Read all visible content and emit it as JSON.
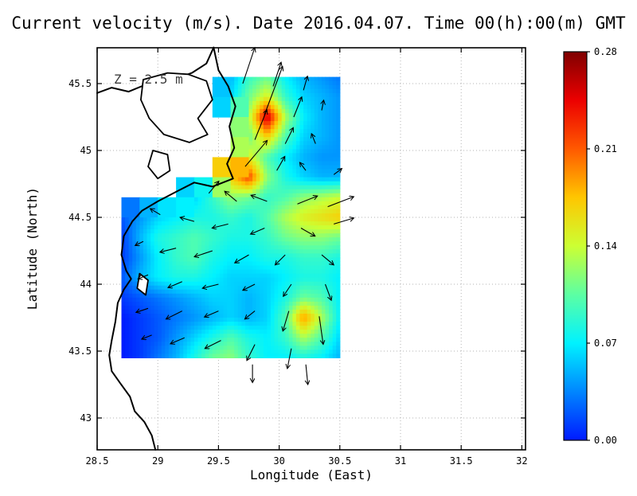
{
  "title": "Current velocity (m/s). Date 2016.04.07. Time 00(h):00(m) GMT",
  "annotation": "Z = 2.5 m",
  "axes": {
    "xlabel": "Longitude (East)",
    "ylabel": "Latitude (North)",
    "xlim": [
      28.5,
      32.03
    ],
    "ylim": [
      42.762,
      45.768
    ],
    "x_ticks": [
      {
        "v": 28.5,
        "label": "28.5"
      },
      {
        "v": 29,
        "label": "29"
      },
      {
        "v": 29.5,
        "label": "29.5"
      },
      {
        "v": 30,
        "label": "30"
      },
      {
        "v": 30.5,
        "label": "30.5"
      },
      {
        "v": 31,
        "label": "31"
      },
      {
        "v": 31.5,
        "label": "31.5"
      },
      {
        "v": 32,
        "label": "32"
      }
    ],
    "y_ticks": [
      {
        "v": 43,
        "label": "43"
      },
      {
        "v": 43.5,
        "label": "43.5"
      },
      {
        "v": 44,
        "label": "44"
      },
      {
        "v": 44.5,
        "label": "44.5"
      },
      {
        "v": 45,
        "label": "45"
      },
      {
        "v": 45.5,
        "label": "45.5"
      }
    ]
  },
  "colorbar": {
    "min": 0,
    "max": 0.28,
    "ticks": [
      {
        "v": 0,
        "label": "0.00"
      },
      {
        "v": 0.07,
        "label": "0.07"
      },
      {
        "v": 0.14,
        "label": "0.14"
      },
      {
        "v": 0.21,
        "label": "0.21"
      },
      {
        "v": 0.28,
        "label": "0.28"
      }
    ],
    "stops": [
      {
        "v": 0.0,
        "color": "#001aff"
      },
      {
        "v": 0.035,
        "color": "#0086ff"
      },
      {
        "v": 0.07,
        "color": "#00f2ff"
      },
      {
        "v": 0.105,
        "color": "#5cffa3"
      },
      {
        "v": 0.14,
        "color": "#ccff33"
      },
      {
        "v": 0.175,
        "color": "#ffc600"
      },
      {
        "v": 0.21,
        "color": "#ff5900"
      },
      {
        "v": 0.245,
        "color": "#ec0000"
      },
      {
        "v": 0.28,
        "color": "#7f0000"
      }
    ]
  },
  "chart_data": {
    "type": "heatmap",
    "title": "Current velocity (m/s). Date 2016.04.07. Time 00(h):00(m) GMT",
    "units": "m/s",
    "xlabel": "Longitude (East)",
    "ylabel": "Latitude (North)",
    "value_range": [
      0,
      0.28
    ],
    "lon": [
      28.7,
      28.85,
      29.0,
      29.15,
      29.3,
      29.45,
      29.6,
      29.75,
      29.9,
      30.05,
      30.2,
      30.35,
      30.5
    ],
    "lat": [
      45.55,
      45.4,
      45.25,
      45.1,
      44.95,
      44.8,
      44.65,
      44.5,
      44.35,
      44.2,
      44.05,
      43.9,
      43.75,
      43.6,
      43.45
    ],
    "speed": [
      [
        null,
        null,
        null,
        null,
        null,
        null,
        0.05,
        0.09,
        0.11,
        0.07,
        0.05,
        0.04,
        0.03
      ],
      [
        null,
        null,
        null,
        null,
        null,
        null,
        0.06,
        0.11,
        0.15,
        0.09,
        0.06,
        0.05,
        0.04
      ],
      [
        null,
        null,
        null,
        null,
        null,
        null,
        null,
        0.13,
        0.26,
        0.13,
        0.07,
        0.05,
        0.04
      ],
      [
        null,
        null,
        null,
        null,
        null,
        null,
        null,
        0.11,
        0.17,
        0.1,
        0.06,
        0.05,
        0.04
      ],
      [
        null,
        null,
        null,
        null,
        null,
        null,
        null,
        0.15,
        0.1,
        0.07,
        0.05,
        0.04,
        0.04
      ],
      [
        null,
        null,
        null,
        null,
        null,
        null,
        0.17,
        0.22,
        0.12,
        0.08,
        0.06,
        0.05,
        0.05
      ],
      [
        null,
        null,
        null,
        null,
        0.06,
        0.09,
        0.12,
        0.11,
        0.09,
        0.1,
        0.12,
        0.13,
        0.14
      ],
      [
        0.02,
        0.04,
        0.06,
        0.07,
        0.08,
        0.08,
        0.09,
        0.08,
        0.1,
        0.13,
        0.15,
        0.16,
        0.17
      ],
      [
        0.01,
        0.05,
        0.08,
        0.09,
        0.1,
        0.09,
        0.08,
        0.08,
        0.09,
        0.11,
        0.12,
        0.12,
        0.11
      ],
      [
        0.01,
        0.04,
        0.07,
        0.09,
        0.1,
        0.08,
        0.07,
        0.07,
        0.08,
        0.08,
        0.09,
        0.09,
        0.08
      ],
      [
        0.02,
        0.05,
        0.07,
        0.08,
        0.08,
        0.07,
        0.06,
        0.06,
        0.06,
        0.07,
        0.08,
        0.08,
        0.07
      ],
      [
        0.01,
        0.02,
        0.03,
        0.04,
        0.05,
        0.06,
        0.06,
        0.05,
        0.06,
        0.08,
        0.11,
        0.1,
        0.07
      ],
      [
        0.0,
        0.01,
        0.02,
        0.03,
        0.04,
        0.05,
        0.06,
        0.05,
        0.06,
        0.1,
        0.19,
        0.13,
        0.07
      ],
      [
        0.0,
        0.01,
        0.02,
        0.04,
        0.06,
        0.08,
        0.1,
        0.08,
        0.07,
        0.09,
        0.13,
        0.1,
        0.06
      ],
      [
        0.0,
        0.01,
        0.03,
        0.05,
        0.08,
        0.11,
        0.12,
        0.09,
        0.07,
        0.07,
        0.08,
        0.07,
        0.05
      ]
    ],
    "arrows": [
      [
        29.7,
        45.5,
        0.06,
        0.18
      ],
      [
        29.95,
        45.48,
        0.04,
        0.12
      ],
      [
        30.2,
        45.45,
        0.02,
        0.07
      ],
      [
        29.88,
        45.27,
        0.09,
        0.24
      ],
      [
        30.12,
        45.25,
        0.04,
        0.1
      ],
      [
        30.35,
        45.3,
        0.01,
        0.05
      ],
      [
        29.8,
        45.08,
        0.06,
        0.15
      ],
      [
        30.05,
        45.05,
        0.04,
        0.08
      ],
      [
        30.3,
        45.05,
        -0.02,
        0.05
      ],
      [
        29.72,
        44.88,
        0.11,
        0.13
      ],
      [
        29.98,
        44.85,
        0.04,
        0.07
      ],
      [
        30.22,
        44.85,
        -0.03,
        0.04
      ],
      [
        30.45,
        44.82,
        0.04,
        0.03
      ],
      [
        29.42,
        44.68,
        0.05,
        0.06
      ],
      [
        29.65,
        44.62,
        -0.06,
        0.05
      ],
      [
        29.9,
        44.62,
        -0.08,
        0.03
      ],
      [
        30.15,
        44.6,
        0.1,
        0.04
      ],
      [
        30.4,
        44.58,
        0.13,
        0.05
      ],
      [
        29.02,
        44.52,
        -0.05,
        0.03
      ],
      [
        29.3,
        44.47,
        -0.07,
        0.02
      ],
      [
        29.58,
        44.45,
        -0.08,
        -0.02
      ],
      [
        29.88,
        44.42,
        -0.07,
        -0.03
      ],
      [
        30.18,
        44.42,
        0.07,
        -0.04
      ],
      [
        30.45,
        44.45,
        0.1,
        0.03
      ],
      [
        28.88,
        44.32,
        -0.04,
        -0.02
      ],
      [
        29.15,
        44.27,
        -0.08,
        -0.02
      ],
      [
        29.45,
        44.25,
        -0.09,
        -0.03
      ],
      [
        29.75,
        44.22,
        -0.07,
        -0.04
      ],
      [
        30.05,
        44.22,
        -0.05,
        -0.05
      ],
      [
        30.35,
        44.22,
        0.06,
        -0.05
      ],
      [
        28.92,
        44.07,
        -0.05,
        -0.02
      ],
      [
        29.2,
        44.02,
        -0.07,
        -0.03
      ],
      [
        29.5,
        44.0,
        -0.08,
        -0.02
      ],
      [
        29.8,
        44.0,
        -0.06,
        -0.03
      ],
      [
        30.1,
        44.0,
        -0.04,
        -0.06
      ],
      [
        30.38,
        44.0,
        0.03,
        -0.08
      ],
      [
        28.92,
        43.82,
        -0.06,
        -0.02
      ],
      [
        29.2,
        43.8,
        -0.08,
        -0.04
      ],
      [
        29.5,
        43.8,
        -0.07,
        -0.03
      ],
      [
        29.8,
        43.8,
        -0.05,
        -0.04
      ],
      [
        30.08,
        43.8,
        -0.03,
        -0.1
      ],
      [
        30.33,
        43.76,
        0.02,
        -0.14
      ],
      [
        28.95,
        43.62,
        -0.05,
        -0.02
      ],
      [
        29.22,
        43.6,
        -0.07,
        -0.03
      ],
      [
        29.52,
        43.58,
        -0.08,
        -0.04
      ],
      [
        29.8,
        43.55,
        -0.04,
        -0.08
      ],
      [
        30.1,
        43.52,
        -0.02,
        -0.1
      ],
      [
        29.78,
        43.4,
        0.0,
        -0.09
      ],
      [
        30.22,
        43.4,
        0.01,
        -0.1
      ]
    ],
    "coastline": [
      [
        [
          28.5,
          45.43
        ],
        [
          28.62,
          45.47
        ],
        [
          28.76,
          45.44
        ],
        [
          28.92,
          45.5
        ],
        [
          29.1,
          45.52
        ],
        [
          29.28,
          45.58
        ],
        [
          29.4,
          45.65
        ],
        [
          29.46,
          45.77
        ]
      ],
      [
        [
          29.46,
          45.77
        ],
        [
          29.5,
          45.6
        ],
        [
          29.58,
          45.48
        ],
        [
          29.64,
          45.33
        ],
        [
          29.59,
          45.18
        ],
        [
          29.63,
          45.02
        ],
        [
          29.57,
          44.9
        ],
        [
          29.62,
          44.79
        ],
        [
          29.45,
          44.73
        ],
        [
          29.3,
          44.76
        ],
        [
          29.17,
          44.7
        ],
        [
          29.0,
          44.62
        ],
        [
          28.87,
          44.55
        ],
        [
          28.79,
          44.47
        ],
        [
          28.72,
          44.36
        ],
        [
          28.7,
          44.22
        ],
        [
          28.74,
          44.1
        ],
        [
          28.78,
          44.04
        ],
        [
          28.72,
          43.96
        ],
        [
          28.67,
          43.86
        ],
        [
          28.65,
          43.72
        ],
        [
          28.62,
          43.58
        ],
        [
          28.6,
          43.47
        ],
        [
          28.62,
          43.35
        ],
        [
          28.69,
          43.26
        ],
        [
          28.77,
          43.16
        ],
        [
          28.81,
          43.05
        ],
        [
          28.89,
          42.97
        ],
        [
          28.95,
          42.87
        ],
        [
          28.98,
          42.762
        ]
      ]
    ],
    "lagoons": [
      [
        [
          28.88,
          45.53
        ],
        [
          29.08,
          45.58
        ],
        [
          29.25,
          45.57
        ],
        [
          29.4,
          45.52
        ],
        [
          29.45,
          45.38
        ],
        [
          29.33,
          45.24
        ],
        [
          29.41,
          45.12
        ],
        [
          29.26,
          45.06
        ],
        [
          29.05,
          45.12
        ],
        [
          28.93,
          45.24
        ],
        [
          28.86,
          45.38
        ]
      ],
      [
        [
          28.96,
          45.0
        ],
        [
          29.08,
          44.97
        ],
        [
          29.1,
          44.85
        ],
        [
          29.0,
          44.79
        ],
        [
          28.92,
          44.88
        ]
      ],
      [
        [
          28.85,
          44.08
        ],
        [
          28.92,
          44.03
        ],
        [
          28.9,
          43.92
        ],
        [
          28.83,
          43.97
        ]
      ]
    ]
  }
}
